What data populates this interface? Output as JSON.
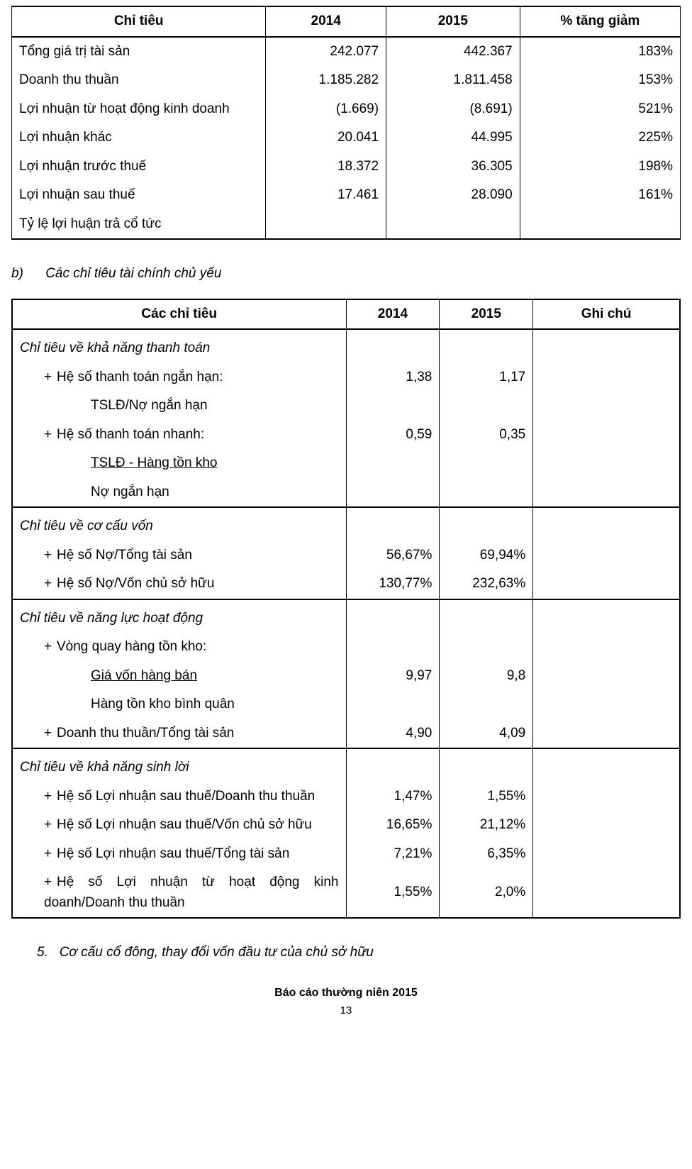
{
  "table1": {
    "columns": [
      "Chỉ tiêu",
      "2014",
      "2015",
      "% tăng giảm"
    ],
    "rows": [
      [
        "Tổng giá trị tài sản",
        "242.077",
        "442.367",
        "183%"
      ],
      [
        "Doanh thu thuần",
        "1.185.282",
        "1.811.458",
        "153%"
      ],
      [
        "Lợi nhuận từ hoạt động kinh doanh",
        "(1.669)",
        "(8.691)",
        "521%"
      ],
      [
        "Lợi nhuận khác",
        "20.041",
        "44.995",
        "225%"
      ],
      [
        "Lợi nhuận trước thuế",
        "18.372",
        "36.305",
        "198%"
      ],
      [
        "Lợi nhuận sau thuế",
        "17.461",
        "28.090",
        "161%"
      ],
      [
        "Tỷ lệ lợi   huận trả cổ tức",
        "",
        "",
        ""
      ]
    ],
    "col_align": [
      "left",
      "right",
      "right",
      "right"
    ],
    "border_color": "#000000",
    "background_color": "#ffffff"
  },
  "section_b": {
    "ord": "b)",
    "title": "Các chỉ tiêu tài chính chủ yếu"
  },
  "table2": {
    "columns": [
      "Các chỉ tiêu",
      "2014",
      "2015",
      "Ghi chú"
    ],
    "border_color": "#000000",
    "background_color": "#ffffff",
    "groups": [
      {
        "title": "Chỉ tiêu về khả năng thanh toán",
        "rows": [
          {
            "bullet": "+",
            "label": "Hệ số thanh toán ngắn hạn:",
            "v2014": "1,38",
            "v2015": "1,17"
          },
          {
            "indent": 2,
            "label": "TSLĐ/Nợ ngắn hạn"
          },
          {
            "bullet": "+",
            "label": "Hệ số thanh toán nhanh:",
            "v2014": "0,59",
            "v2015": "0,35"
          },
          {
            "indent": 2,
            "underline": true,
            "label": "TSLĐ - Hàng tồn kho"
          },
          {
            "indent": 2,
            "label": "Nợ ngắn hạn"
          }
        ]
      },
      {
        "title": "Chỉ tiêu về cơ cấu vốn",
        "rows": [
          {
            "bullet": "+",
            "label": "Hệ số Nợ/Tổng tài sản",
            "v2014": "56,67%",
            "v2015": "69,94%"
          },
          {
            "bullet": "+",
            "label": "Hệ số Nợ/Vốn chủ sở hữu",
            "v2014": "130,77%",
            "v2015": "232,63%"
          }
        ]
      },
      {
        "title": "Chỉ tiêu về năng lực hoạt động",
        "rows": [
          {
            "bullet": "+",
            "label": "Vòng quay hàng tồn kho:"
          },
          {
            "indent": 2,
            "underline": true,
            "label": "Giá vốn hàng bán",
            "v2014": "9,97",
            "v2015": "9,8"
          },
          {
            "indent": 2,
            "label": "Hàng tồn kho bình quân"
          },
          {
            "bullet": "+",
            "label": "Doanh thu thuần/Tổng tài sản",
            "v2014": "4,90",
            "v2015": "4,09"
          }
        ]
      },
      {
        "title": "Chỉ tiêu về khả năng sinh lời",
        "rows": [
          {
            "bullet": "+",
            "label": "Hệ số Lợi nhuận sau thuế/Doanh thu  thuần",
            "v2014": "1,47%",
            "v2015": "1,55%"
          },
          {
            "bullet": "+",
            "label": "Hệ số Lợi nhuận sau thuế/Vốn chủ sở hữu",
            "v2014": "16,65%",
            "v2015": "21,12%"
          },
          {
            "bullet": "+",
            "label": "Hệ số Lợi nhuận sau thuế/Tổng tài sản",
            "v2014": "7,21%",
            "v2015": "6,35%"
          },
          {
            "bullet": "+",
            "justify": true,
            "label": "Hệ số Lợi nhuận từ hoạt động kinh doanh/Doanh thu thuần",
            "v2014": "1,55%",
            "v2015": "2,0%"
          }
        ]
      }
    ]
  },
  "section5": {
    "ord": "5.",
    "title": "Cơ cấu cổ đông, thay đổi vốn đầu tư của chủ sở hữu"
  },
  "footer": {
    "text": "Báo cáo thường niên 2015",
    "page": "13"
  },
  "typography": {
    "font_family": "Arial, sans-serif",
    "base_fontsize_pt": 14,
    "heading_fontweight": "bold",
    "text_color": "#000000"
  }
}
